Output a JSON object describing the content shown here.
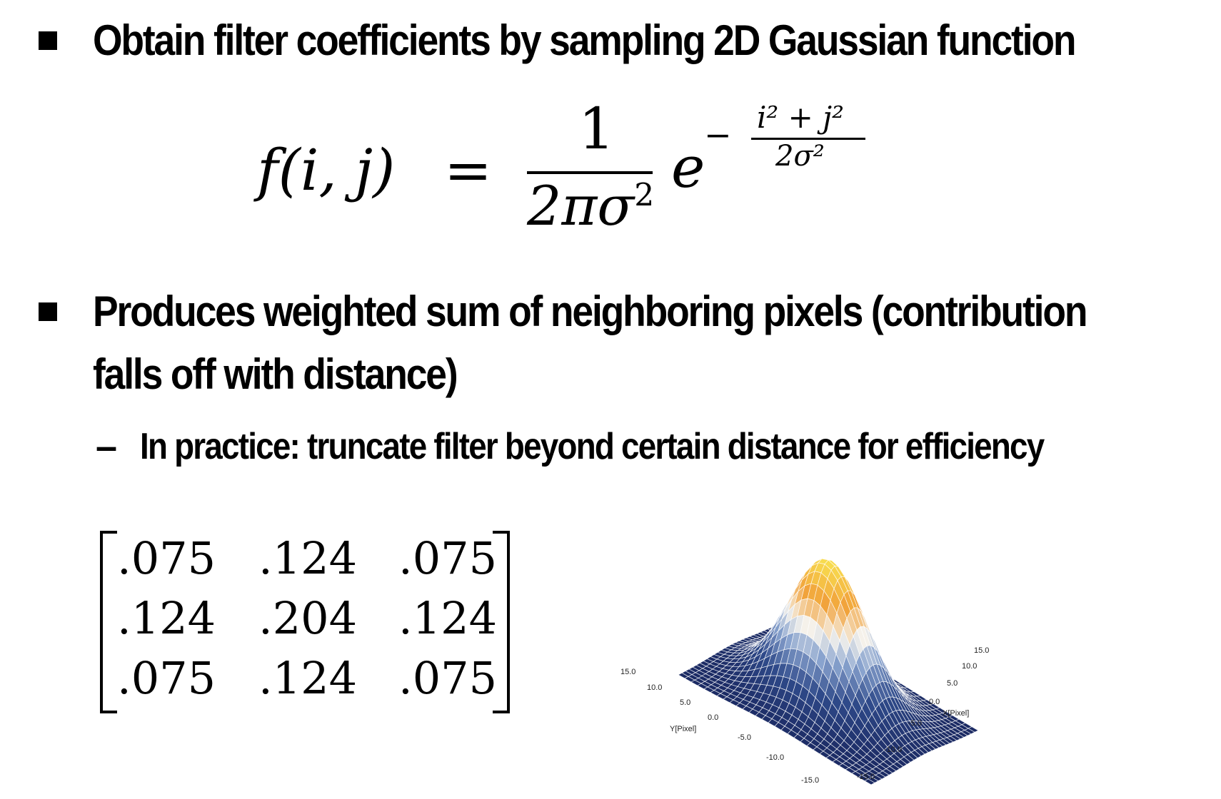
{
  "bullets": [
    "Obtain filter coefficients by sampling 2D Gaussian function",
    "Produces weighted sum of neighboring pixels (contribution",
    "falls off with distance)"
  ],
  "sub_bullet": {
    "dash": "–",
    "text": "In practice: truncate filter beyond certain distance for efficiency"
  },
  "formula": {
    "lhs": "f(i, j)",
    "equals": "=",
    "numerator": "1",
    "denominator": "2πσ",
    "denominator_exp": "2",
    "base": "e",
    "exp_sign": "−",
    "exp_numerator": "i² + j²",
    "exp_denominator": "2σ²"
  },
  "matrix": [
    [
      ".075",
      ".124",
      ".075"
    ],
    [
      ".124",
      ".204",
      ".124"
    ],
    [
      ".075",
      ".124",
      ".075"
    ]
  ],
  "plot": {
    "x_axis_label": "X[Pixel]",
    "y_axis_label": "Y[Pixel]",
    "x_ticks": [
      "15.0",
      "10.0",
      "5.0",
      "0.0",
      "-5.0",
      "-10.0",
      "-15.0"
    ],
    "y_ticks": [
      "15.0",
      "10.0",
      "5.0",
      "0.0",
      "-5.0",
      "-10.0",
      "-15.0"
    ],
    "colors": {
      "low": "#1b2a63",
      "mid": "#7f9bc8",
      "peak": "#ffffff",
      "high": "#f4a93a",
      "top": "#f8dd4a"
    }
  }
}
